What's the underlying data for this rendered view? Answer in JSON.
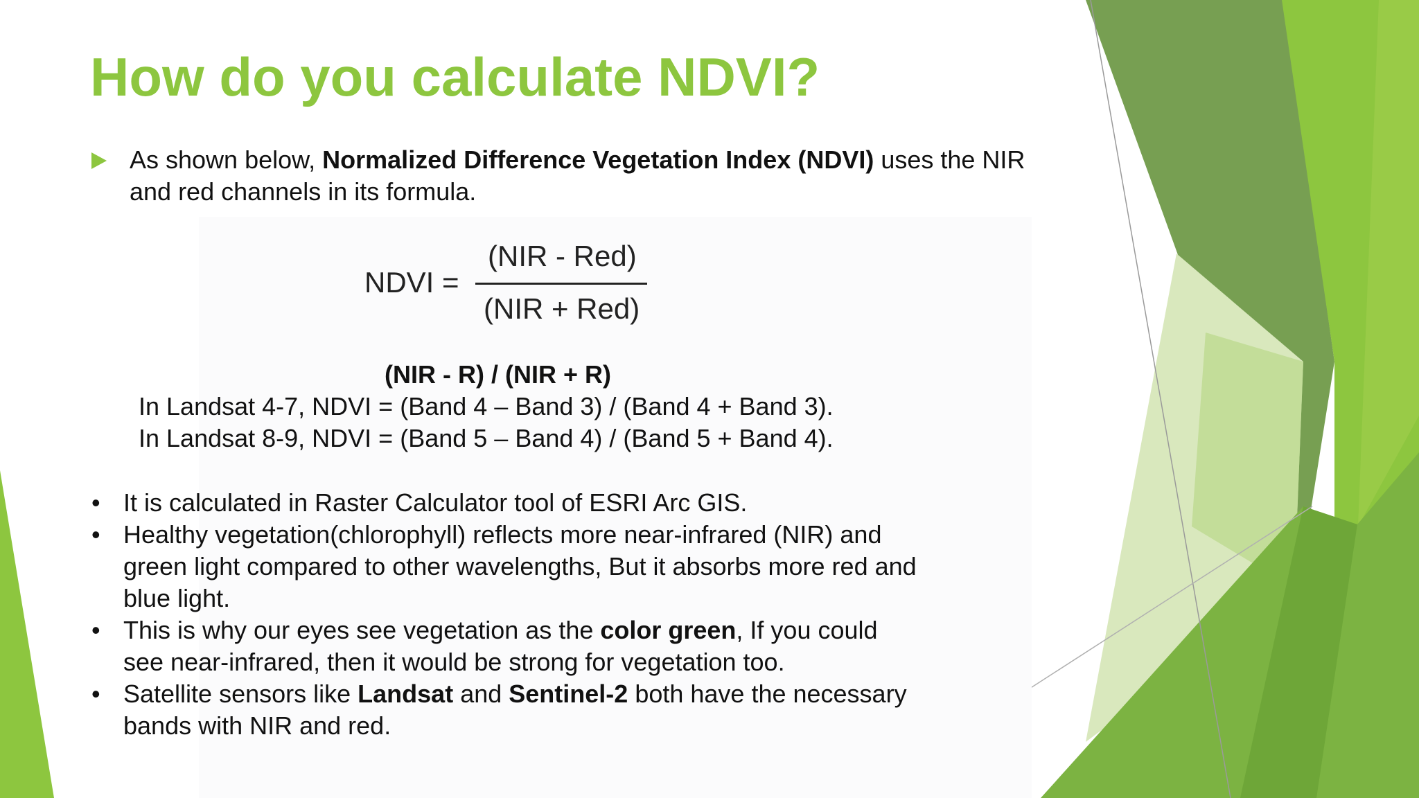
{
  "title": "How do you calculate NDVI?",
  "intro": [
    "As shown below, ",
    "Normalized Difference Vegetation Index (NDVI)",
    " uses the NIR and red channels in its formula."
  ],
  "formula": {
    "lhs": "NDVI =",
    "numerator": "(NIR - Red)",
    "denominator": "(NIR + Red)"
  },
  "formula_text": "(NIR - R) / (NIR + R)",
  "landsat": [
    "In Landsat 4-7, NDVI = (Band 4 – Band 3) / (Band 4 + Band 3).",
    "In Landsat 8-9, NDVI = (Band 5 – Band 4) / (Band 5 + Band 4)."
  ],
  "bullets": [
    [
      "It is calculated in Raster Calculator tool of ESRI Arc GIS."
    ],
    [
      "Healthy vegetation(chlorophyll) reflects more near-infrared (NIR) and green light compared to other wavelengths, But it absorbs more red and blue light."
    ],
    [
      "This is why our eyes see vegetation as the ",
      "color green",
      ", If you could see near-infrared, then it would be strong for vegetation too."
    ],
    [
      "Satellite sensors like ",
      "Landsat",
      " and ",
      "Sentinel-2",
      " both have the necessary bands with NIR and red."
    ]
  ]
}
